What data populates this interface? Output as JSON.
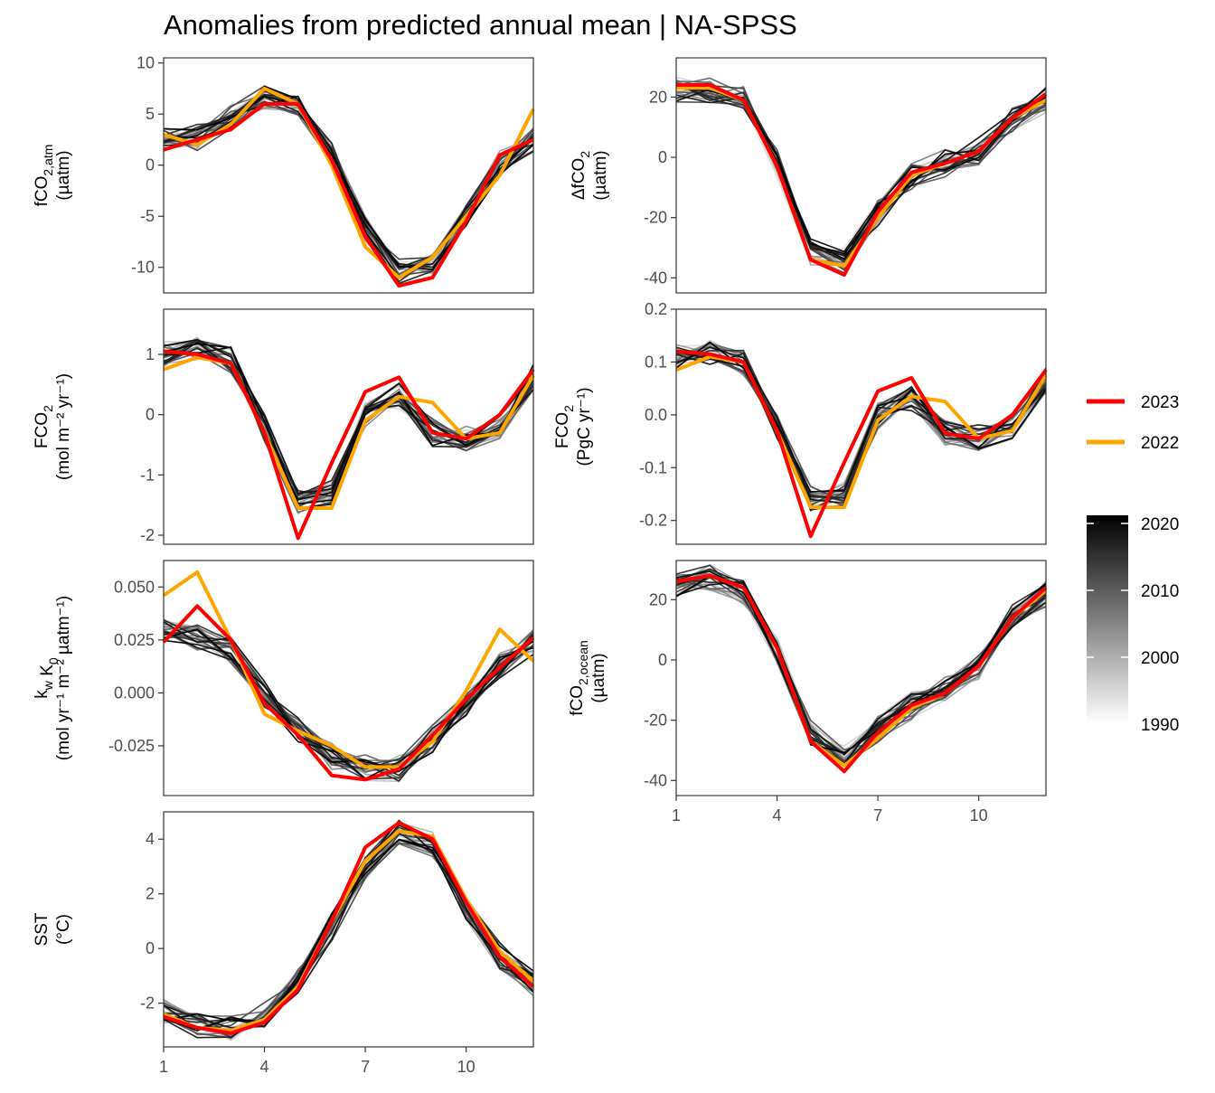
{
  "figure": {
    "title": "Anomalies from predicted annual mean | NA-SPSS"
  },
  "legend": {
    "highlight": [
      {
        "year": "2023",
        "color": "#ff0000"
      },
      {
        "year": "2022",
        "color": "#ffa500"
      }
    ],
    "gradient": {
      "ticks": [
        "2020",
        "2010",
        "2000",
        "1990"
      ],
      "from_color": "#ffffff",
      "to_color": "#000000"
    }
  },
  "chart_data": [
    {
      "type": "line",
      "panel": "fco2_atm",
      "ylabel_main": "fCO",
      "ylabel_sub": "2,atm",
      "ylabel_unit": "(µatm)",
      "x": [
        1,
        2,
        3,
        4,
        5,
        6,
        7,
        8,
        9,
        10,
        11,
        12
      ],
      "xticks": [
        1,
        4,
        7,
        10
      ],
      "ylim": [
        -12.5,
        10.5
      ],
      "yticks": [
        10,
        5,
        0,
        -5,
        -10
      ],
      "yticklabels": [
        "10",
        "5",
        "0",
        "-5",
        "-10"
      ],
      "background_years": "1990-2021 (grey to black)",
      "climatology": [
        2.5,
        2.8,
        4.5,
        6.5,
        6.0,
        1.0,
        -6.0,
        -10.5,
        -9.5,
        -5.0,
        0.0,
        2.5
      ],
      "series": [
        {
          "name": "2023",
          "color": "#ff0000",
          "values": [
            1.5,
            2.5,
            3.5,
            6.0,
            6.0,
            0.5,
            -7.0,
            -11.8,
            -11.0,
            -5.5,
            1.0,
            2.5
          ]
        },
        {
          "name": "2022",
          "color": "#ffa500",
          "values": [
            3.0,
            2.0,
            4.0,
            7.5,
            6.0,
            0.0,
            -8.0,
            -11.0,
            -9.0,
            -5.0,
            -1.0,
            5.5
          ]
        }
      ]
    },
    {
      "type": "line",
      "panel": "delta_fco2",
      "ylabel_main": "ΔfCO",
      "ylabel_sub": "2",
      "ylabel_unit": "(µatm)",
      "x": [
        1,
        2,
        3,
        4,
        5,
        6,
        7,
        8,
        9,
        10,
        11,
        12
      ],
      "xticks": [
        1,
        4,
        7,
        10
      ],
      "ylim": [
        -45,
        33
      ],
      "yticks": [
        20,
        0,
        -20,
        -40
      ],
      "yticklabels": [
        "20",
        "0",
        "-20",
        "-40"
      ],
      "background_years": "1990-2021 (grey to black)",
      "climatology": [
        22,
        22,
        19,
        -2,
        -31,
        -34,
        -18,
        -6,
        -2,
        2,
        12,
        19
      ],
      "series": [
        {
          "name": "2023",
          "color": "#ff0000",
          "values": [
            24,
            24,
            19,
            -3,
            -34,
            -39,
            -18,
            -5,
            -2,
            2,
            13,
            21
          ]
        },
        {
          "name": "2022",
          "color": "#ffa500",
          "values": [
            23,
            23,
            19,
            -3,
            -34,
            -36,
            -20,
            -6,
            -2,
            2,
            13,
            19
          ]
        }
      ]
    },
    {
      "type": "line",
      "panel": "fco2_flux_area",
      "ylabel_main": "FCO",
      "ylabel_sub": "2",
      "ylabel_unit": "(mol m⁻² yr⁻¹)",
      "x": [
        1,
        2,
        3,
        4,
        5,
        6,
        7,
        8,
        9,
        10,
        11,
        12
      ],
      "xticks": [
        1,
        4,
        7,
        10
      ],
      "ylim": [
        -2.15,
        1.75
      ],
      "yticks": [
        1,
        0,
        -1,
        -2
      ],
      "yticklabels": [
        "1",
        "0",
        "-1",
        "-2"
      ],
      "background_years": "1990-2021 (grey to black)",
      "climatology": [
        1.0,
        1.1,
        0.9,
        -0.2,
        -1.4,
        -1.3,
        0.0,
        0.3,
        -0.3,
        -0.4,
        -0.2,
        0.6
      ],
      "series": [
        {
          "name": "2023",
          "color": "#ff0000",
          "values": [
            1.05,
            1.0,
            0.85,
            -0.3,
            -2.05,
            -0.8,
            0.38,
            0.62,
            -0.3,
            -0.4,
            0.0,
            0.75
          ]
        },
        {
          "name": "2022",
          "color": "#ffa500",
          "values": [
            0.75,
            0.95,
            0.85,
            -0.3,
            -1.55,
            -1.55,
            -0.1,
            0.3,
            0.2,
            -0.4,
            -0.3,
            0.65
          ]
        }
      ]
    },
    {
      "type": "line",
      "panel": "fco2_flux_total",
      "ylabel_main": "FCO",
      "ylabel_sub": "2",
      "ylabel_unit": "(PgC yr⁻¹)",
      "x": [
        1,
        2,
        3,
        4,
        5,
        6,
        7,
        8,
        9,
        10,
        11,
        12
      ],
      "xticks": [
        1,
        4,
        7,
        10
      ],
      "ylim": [
        -0.245,
        0.2
      ],
      "yticks": [
        0.2,
        0.1,
        0.0,
        -0.1,
        -0.2
      ],
      "yticklabels": [
        "0.2",
        "0.1",
        "0.0",
        "-0.1",
        "-0.2"
      ],
      "background_years": "1990-2021 (grey to black)",
      "climatology": [
        0.11,
        0.12,
        0.1,
        -0.02,
        -0.16,
        -0.15,
        0.0,
        0.035,
        -0.035,
        -0.045,
        -0.02,
        0.065
      ],
      "series": [
        {
          "name": "2023",
          "color": "#ff0000",
          "values": [
            0.12,
            0.115,
            0.1,
            -0.03,
            -0.23,
            -0.09,
            0.045,
            0.07,
            -0.035,
            -0.045,
            0.0,
            0.085
          ]
        },
        {
          "name": "2022",
          "color": "#ffa500",
          "values": [
            0.085,
            0.11,
            0.1,
            -0.03,
            -0.175,
            -0.175,
            -0.01,
            0.035,
            0.025,
            -0.045,
            -0.03,
            0.075
          ]
        }
      ]
    },
    {
      "type": "line",
      "panel": "kw_k0",
      "ylabel_main": "k",
      "ylabel_sub": "w",
      "ylabel_main2": " K",
      "ylabel_sub2": "0",
      "ylabel_unit": "(mol yr⁻¹ m⁻² µatm⁻¹)",
      "x": [
        1,
        2,
        3,
        4,
        5,
        6,
        7,
        8,
        9,
        10,
        11,
        12
      ],
      "xticks": [
        1,
        4,
        7,
        10
      ],
      "ylim": [
        -0.0485,
        0.0625
      ],
      "yticks": [
        0.05,
        0.025,
        0.0,
        -0.025
      ],
      "yticklabels": [
        "0.050",
        "0.025",
        "0.000",
        "-0.025"
      ],
      "background_years": "1990-2021 (grey to black)",
      "climatology": [
        0.03,
        0.027,
        0.02,
        0.0,
        -0.018,
        -0.03,
        -0.036,
        -0.036,
        -0.022,
        -0.005,
        0.012,
        0.025
      ],
      "series": [
        {
          "name": "2023",
          "color": "#ff0000",
          "values": [
            0.024,
            0.041,
            0.025,
            -0.005,
            -0.02,
            -0.039,
            -0.041,
            -0.036,
            -0.02,
            -0.003,
            0.012,
            0.026
          ]
        },
        {
          "name": "2022",
          "color": "#ffa500",
          "values": [
            0.046,
            0.057,
            0.025,
            -0.01,
            -0.018,
            -0.025,
            -0.035,
            -0.035,
            -0.023,
            0.001,
            0.03,
            0.015
          ]
        }
      ]
    },
    {
      "type": "line",
      "panel": "fco2_ocean",
      "ylabel_main": "fCO",
      "ylabel_sub": "2,ocean",
      "ylabel_unit": "(µatm)",
      "x": [
        1,
        2,
        3,
        4,
        5,
        6,
        7,
        8,
        9,
        10,
        11,
        12
      ],
      "xticks": [
        1,
        4,
        7,
        10
      ],
      "xticklabels_shown": true,
      "ylim": [
        -45,
        33
      ],
      "yticks": [
        20,
        0,
        -20,
        -40
      ],
      "yticklabels": [
        "20",
        "0",
        "-20",
        "-40"
      ],
      "background_years": "1990-2021 (grey to black)",
      "climatology": [
        25,
        27,
        23,
        3,
        -24,
        -33,
        -23,
        -15,
        -10,
        -2,
        14,
        22
      ],
      "series": [
        {
          "name": "2023",
          "color": "#ff0000",
          "values": [
            26,
            28,
            24,
            4,
            -27,
            -37,
            -24,
            -15,
            -11,
            -2,
            14,
            24
          ]
        },
        {
          "name": "2022",
          "color": "#ffa500",
          "values": [
            26,
            28,
            24,
            4,
            -27,
            -35,
            -26,
            -16,
            -11,
            -2,
            14,
            23
          ]
        }
      ]
    },
    {
      "type": "line",
      "panel": "sst",
      "ylabel_main": "SST",
      "ylabel_unit": "(°C)",
      "x": [
        1,
        2,
        3,
        4,
        5,
        6,
        7,
        8,
        9,
        10,
        11,
        12
      ],
      "xticks": [
        1,
        4,
        7,
        10
      ],
      "xticklabels_shown": true,
      "ylim": [
        -3.6,
        5.0
      ],
      "yticks": [
        4,
        2,
        0,
        -2
      ],
      "yticklabels": [
        "4",
        "2",
        "0",
        "-2"
      ],
      "background_years": "1990-2021 (grey to black)",
      "climatology": [
        -2.3,
        -2.8,
        -2.9,
        -2.5,
        -1.2,
        0.8,
        3.0,
        4.2,
        3.8,
        1.5,
        -0.3,
        -1.3
      ],
      "series": [
        {
          "name": "2023",
          "color": "#ff0000",
          "values": [
            -2.5,
            -2.9,
            -3.1,
            -2.7,
            -1.5,
            1.0,
            3.7,
            4.6,
            4.0,
            1.7,
            -0.3,
            -1.4
          ]
        },
        {
          "name": "2022",
          "color": "#ffa500",
          "values": [
            -2.4,
            -2.9,
            -3.0,
            -2.6,
            -1.4,
            1.0,
            3.2,
            4.3,
            4.1,
            1.8,
            -0.1,
            -1.2
          ]
        }
      ]
    }
  ]
}
